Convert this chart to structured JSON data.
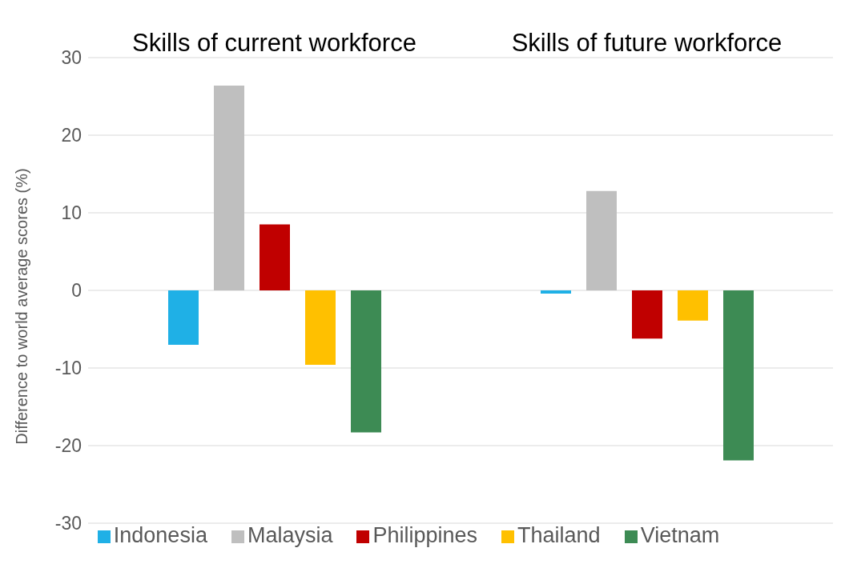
{
  "chart_data": {
    "type": "bar",
    "categories": [
      "Skills of current workforce",
      "Skills of future workforce"
    ],
    "ylabel": "Difference to world average scores (%)",
    "ylim": [
      -30,
      30
    ],
    "yticks": [
      -30,
      -20,
      -10,
      0,
      10,
      20,
      30
    ],
    "grid": "y",
    "legend": "bottom",
    "series": [
      {
        "name": "Indonesia",
        "color": "#1fb0e6",
        "values": [
          -7.0,
          -0.4
        ]
      },
      {
        "name": "Malaysia",
        "color": "#bfbfbf",
        "values": [
          26.4,
          12.8
        ]
      },
      {
        "name": "Philippines",
        "color": "#c00000",
        "values": [
          8.5,
          -6.2
        ]
      },
      {
        "name": "Thailand",
        "color": "#ffc000",
        "values": [
          -9.6,
          -3.9
        ]
      },
      {
        "name": "Vietnam",
        "color": "#3d8b54",
        "values": [
          -18.3,
          -21.9
        ]
      }
    ]
  }
}
